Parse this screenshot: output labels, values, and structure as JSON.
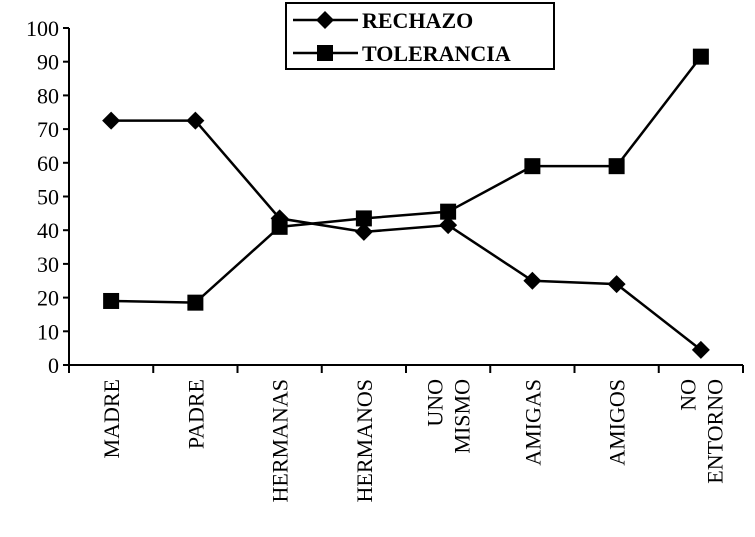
{
  "chart_data": {
    "type": "line",
    "categories": [
      [
        "MADRE"
      ],
      [
        "PADRE"
      ],
      [
        "HERMANAS"
      ],
      [
        "HERMANOS"
      ],
      [
        "UNO",
        "MISMO"
      ],
      [
        "AMIGAS"
      ],
      [
        "AMIGOS"
      ],
      [
        "NO",
        "ENTORNO"
      ]
    ],
    "series": [
      {
        "name": "RECHAZO",
        "marker": "diamond",
        "values": [
          72.5,
          72.5,
          43.5,
          39.5,
          41.5,
          25,
          24,
          4.5
        ]
      },
      {
        "name": "TOLERANCIA",
        "marker": "square",
        "values": [
          19,
          18.5,
          41,
          43.5,
          45.5,
          59,
          59,
          91.5
        ]
      }
    ],
    "ylim": [
      0,
      100
    ],
    "yticks": [
      "0",
      "10",
      "20",
      "30",
      "40",
      "50",
      "60",
      "70",
      "80",
      "90",
      "100"
    ],
    "grid": false,
    "legend": "top-center",
    "colors": {
      "line": "#000000",
      "background": "#ffffff"
    }
  }
}
